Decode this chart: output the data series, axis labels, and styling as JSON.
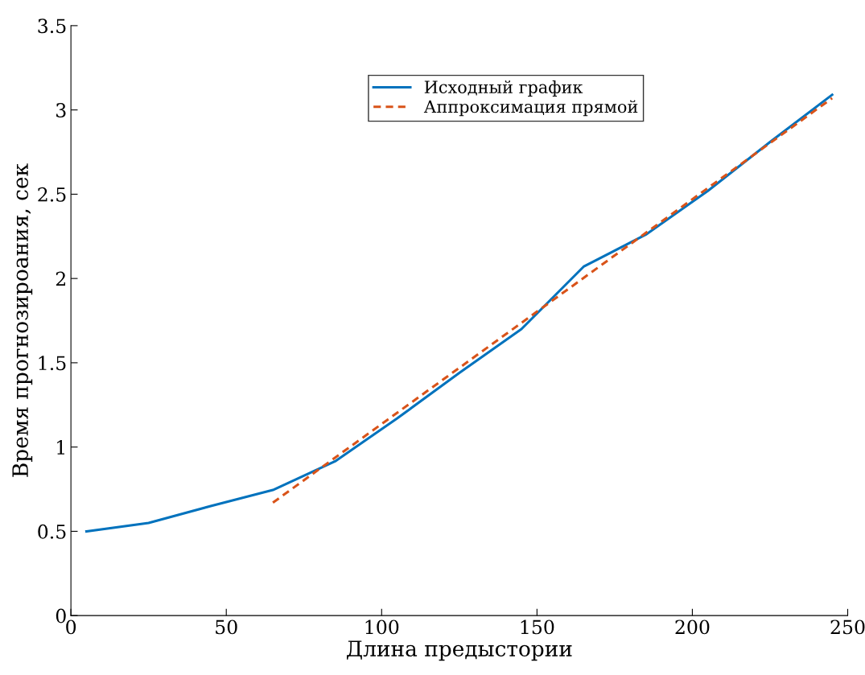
{
  "chart_data": {
    "type": "line",
    "xlabel": "Длина предыстории",
    "ylabel": "Время прогнозироания, сек",
    "x": [
      5,
      25,
      45,
      65,
      85,
      105,
      125,
      145,
      165,
      185,
      205,
      225,
      245
    ],
    "series": [
      {
        "name": "Исходный график",
        "color": "#0072bd",
        "line_style": "solid",
        "values": [
          0.5,
          0.55,
          0.65,
          0.745,
          0.915,
          1.17,
          1.44,
          1.7,
          2.07,
          2.26,
          2.52,
          2.81,
          3.09
        ]
      },
      {
        "name": "Аппроксимация прямой",
        "color": "#d95319",
        "line_style": "dashed",
        "x": [
          65,
          245
        ],
        "values": [
          0.67,
          3.07
        ]
      }
    ],
    "xlim": [
      0,
      250
    ],
    "xticks": [
      0,
      50,
      100,
      150,
      200,
      250
    ],
    "ylim": [
      0,
      3.5
    ],
    "yticks": [
      0,
      0.5,
      1,
      1.5,
      2,
      2.5,
      3,
      3.5
    ],
    "grid": false,
    "legend": "top",
    "marker": "none"
  }
}
